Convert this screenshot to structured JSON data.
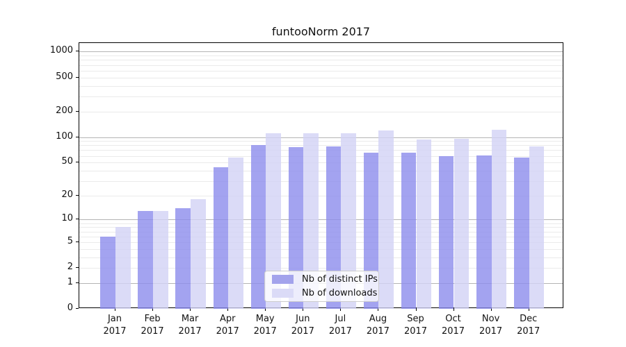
{
  "title": "funtooNorm 2017",
  "legend": {
    "items": [
      {
        "label": "Nb of distinct IPs"
      },
      {
        "label": "Nb of downloads"
      }
    ]
  },
  "chart_data": {
    "type": "bar",
    "title": "funtooNorm 2017",
    "categories": [
      "Jan",
      "Feb",
      "Mar",
      "Apr",
      "May",
      "Jun",
      "Jul",
      "Aug",
      "Sep",
      "Oct",
      "Nov",
      "Dec"
    ],
    "category_year": "2017",
    "series": [
      {
        "name": "Nb of distinct IPs",
        "values": [
          6,
          13,
          14,
          44,
          81,
          76,
          78,
          65,
          65,
          60,
          61,
          57
        ],
        "fill": "rgba(140,140,236,0.8)",
        "legend_color": "#a3a3ec"
      },
      {
        "name": "Nb of downloads",
        "values": [
          8,
          13,
          18,
          57,
          110,
          110,
          110,
          119,
          93,
          95,
          122,
          78
        ],
        "fill": "rgba(210,210,245,0.8)",
        "legend_color": "#dbdbf7"
      }
    ],
    "y_axis": {
      "scale": "log10(1+x)",
      "tick_values": [
        0,
        1,
        2,
        5,
        10,
        20,
        50,
        100,
        200,
        500,
        1000
      ],
      "major_grid_values": [
        1,
        10,
        100,
        1000
      ],
      "minor_grid_values": [
        2,
        3,
        4,
        5,
        6,
        7,
        8,
        9,
        20,
        30,
        40,
        50,
        60,
        70,
        80,
        90,
        200,
        300,
        400,
        500,
        600,
        700,
        800,
        900
      ],
      "ylim_top": 1250
    },
    "xlabel": "",
    "ylabel": "",
    "grid": "horizontal",
    "legend_position": "lower center",
    "colors": {
      "major_grid": "#b3b3b3",
      "minor_grid": "#eaeaea",
      "spine": "#000000",
      "text": "#111111"
    }
  }
}
